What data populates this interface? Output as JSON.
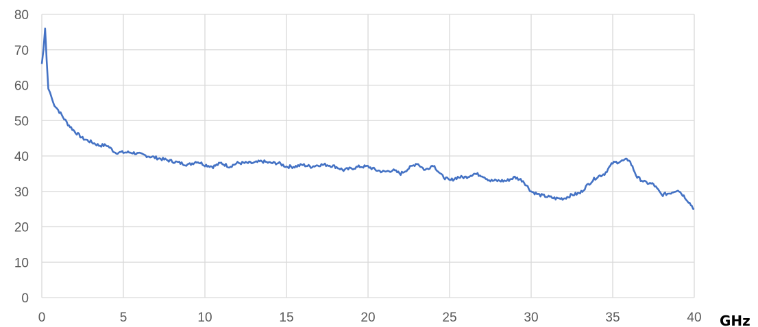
{
  "chart_data": {
    "type": "line",
    "title": "",
    "xlabel": "",
    "ylabel": "",
    "x_unit": "GHz",
    "xlim": [
      0,
      40
    ],
    "ylim": [
      0,
      80
    ],
    "x_ticks": [
      "0",
      "5",
      "10",
      "15",
      "20",
      "25",
      "30",
      "35",
      "40"
    ],
    "y_ticks": [
      "0",
      "10",
      "20",
      "30",
      "40",
      "50",
      "60",
      "70",
      "80"
    ],
    "grid": true,
    "legend": "none",
    "series": [
      {
        "color": "#4472c4",
        "x": [
          0,
          0.1,
          0.2,
          0.3,
          0.4,
          0.5,
          0.7,
          1.0,
          1.3,
          1.6,
          2.0,
          2.5,
          3.0,
          3.5,
          4.0,
          4.5,
          5.0,
          5.5,
          6.0,
          6.5,
          7.0,
          7.5,
          8.0,
          8.5,
          9.0,
          9.5,
          10.0,
          10.5,
          11.0,
          11.5,
          12.0,
          12.5,
          13.0,
          13.5,
          14.0,
          14.5,
          15.0,
          15.5,
          16.0,
          16.5,
          17.0,
          17.5,
          18.0,
          18.5,
          19.0,
          19.5,
          20.0,
          20.5,
          21.0,
          21.5,
          22.0,
          22.5,
          23.0,
          23.5,
          24.0,
          24.5,
          25.0,
          25.5,
          26.0,
          26.5,
          27.0,
          27.5,
          28.0,
          28.5,
          29.0,
          29.5,
          30.0,
          30.5,
          31.0,
          31.5,
          32.0,
          32.5,
          33.0,
          33.5,
          34.0,
          34.5,
          35.0,
          35.5,
          36.0,
          36.5,
          37.0,
          37.5,
          38.0,
          38.5,
          39.0,
          39.5,
          40.0
        ],
        "y": [
          66,
          70,
          76,
          67,
          59,
          58,
          55,
          53,
          51,
          49,
          47,
          45,
          44,
          43,
          43,
          41,
          41,
          41,
          40.5,
          40,
          39.5,
          39,
          38.5,
          38,
          37.5,
          38.5,
          37.5,
          37,
          38,
          37,
          38,
          38,
          38,
          38.5,
          38,
          38,
          37,
          37,
          37.5,
          37,
          37.5,
          37.5,
          37,
          36,
          36.5,
          37,
          37,
          36,
          35.5,
          36,
          35,
          36.5,
          38,
          36,
          37.5,
          34.5,
          33,
          34,
          34,
          35,
          34.5,
          33,
          33,
          33,
          34,
          33,
          30,
          29,
          28.5,
          28,
          28,
          29,
          29.5,
          32,
          34,
          35,
          38,
          38.5,
          39,
          34,
          32.5,
          32,
          29,
          29.5,
          30.5,
          28,
          25
        ]
      }
    ]
  }
}
